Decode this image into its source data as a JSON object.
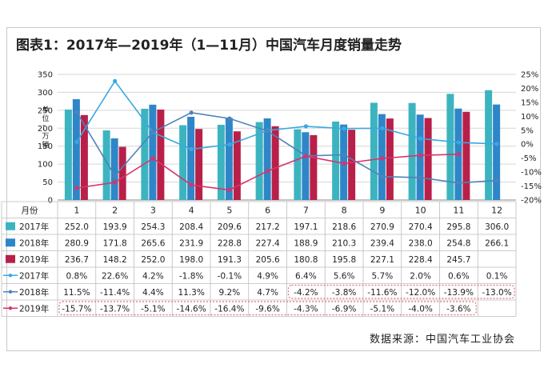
{
  "title": "图表1：2017年—2019年（1—11月）中国汽车月度销量走势",
  "source": "数据来源：中国汽车工业协会",
  "colors": {
    "bar2017": "#3cb4c0",
    "bar2018": "#2e86c8",
    "bar2019": "#b8204a",
    "line2017": "#3aa8e0",
    "line2018": "#4f82b8",
    "line2019": "#d8336d",
    "highlight": "#e0707c"
  },
  "chart_data": {
    "type": "bar",
    "title": "图表1：2017年—2019年（1—11月）中国汽车月度销量走势",
    "ylabel": "单位：万辆",
    "xlabel": "",
    "xtick_header": "月份",
    "categories": [
      "1",
      "2",
      "3",
      "4",
      "5",
      "6",
      "7",
      "8",
      "9",
      "10",
      "11",
      "12"
    ],
    "ylim": [
      0,
      350
    ],
    "yticks": [
      "0",
      "50",
      "100",
      "150",
      "200",
      "250",
      "300",
      "350"
    ],
    "y2lim": [
      -20,
      25
    ],
    "y2ticks": [
      "-20%",
      "-15%",
      "-10%",
      "-5%",
      "0%",
      "5%",
      "10%",
      "15%",
      "20%",
      "25%"
    ],
    "grid": true,
    "series": [
      {
        "name": "2017年",
        "kind": "bar",
        "values": [
          252.0,
          193.9,
          254.3,
          208.4,
          209.6,
          217.2,
          197.1,
          218.6,
          270.9,
          270.4,
          295.8,
          306.0
        ],
        "labels": [
          "252.0",
          "193.9",
          "254.3",
          "208.4",
          "209.6",
          "217.2",
          "197.1",
          "218.6",
          "270.9",
          "270.4",
          "295.8",
          "306.0"
        ]
      },
      {
        "name": "2018年",
        "kind": "bar",
        "values": [
          280.9,
          171.8,
          265.6,
          231.9,
          228.8,
          227.4,
          188.9,
          210.3,
          239.4,
          238.0,
          254.8,
          266.1
        ],
        "labels": [
          "280.9",
          "171.8",
          "265.6",
          "231.9",
          "228.8",
          "227.4",
          "188.9",
          "210.3",
          "239.4",
          "238.0",
          "254.8",
          "266.1"
        ]
      },
      {
        "name": "2019年",
        "kind": "bar",
        "values": [
          236.7,
          148.2,
          252.0,
          198.0,
          191.3,
          205.6,
          180.8,
          195.8,
          227.1,
          228.4,
          245.7,
          null
        ],
        "labels": [
          "236.7",
          "148.2",
          "252.0",
          "198.0",
          "191.3",
          "205.6",
          "180.8",
          "195.8",
          "227.1",
          "228.4",
          "245.7",
          ""
        ]
      },
      {
        "name": "2017年",
        "kind": "line",
        "values": [
          0.8,
          22.6,
          4.2,
          -1.8,
          -0.1,
          4.9,
          6.4,
          5.6,
          5.7,
          2.0,
          0.6,
          0.1
        ],
        "labels": [
          "0.8%",
          "22.6%",
          "4.2%",
          "-1.8%",
          "-0.1%",
          "4.9%",
          "6.4%",
          "5.6%",
          "5.7%",
          "2.0%",
          "0.6%",
          "0.1%"
        ]
      },
      {
        "name": "2018年",
        "kind": "line",
        "values": [
          11.5,
          -11.4,
          4.4,
          11.3,
          9.2,
          4.7,
          -4.2,
          -3.8,
          -11.6,
          -12.0,
          -13.9,
          -13.0
        ],
        "labels": [
          "11.5%",
          "-11.4%",
          "4.4%",
          "11.3%",
          "9.2%",
          "4.7%",
          "-4.2%",
          "-3.8%",
          "-11.6%",
          "-12.0%",
          "-13.9%",
          "-13.0%"
        ]
      },
      {
        "name": "2019年",
        "kind": "line",
        "values": [
          -15.7,
          -13.7,
          -5.1,
          -14.6,
          -16.4,
          -9.6,
          -4.3,
          -6.9,
          -5.1,
          -4.0,
          -3.6,
          null
        ],
        "labels": [
          "-15.7%",
          "-13.7%",
          "-5.1%",
          "-14.6%",
          "-16.4%",
          "-9.6%",
          "-4.3%",
          "-6.9%",
          "-5.1%",
          "-4.0%",
          "-3.6%",
          ""
        ]
      }
    ]
  }
}
